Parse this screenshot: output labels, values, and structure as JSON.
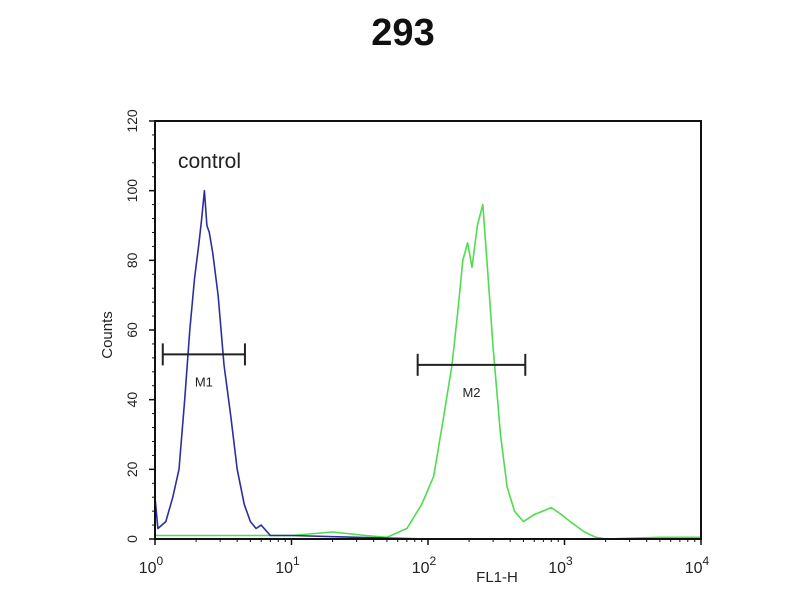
{
  "chart_data": {
    "type": "line",
    "title": "293",
    "xlabel": "FL1-H",
    "ylabel": "Counts",
    "xscale": "log",
    "xlim": [
      1,
      10000
    ],
    "ylim": [
      0,
      120
    ],
    "xticks": [
      {
        "base": "10",
        "exp": "0"
      },
      {
        "base": "10",
        "exp": "1"
      },
      {
        "base": "10",
        "exp": "2"
      },
      {
        "base": "10",
        "exp": "3"
      },
      {
        "base": "10",
        "exp": "4"
      }
    ],
    "yticks": [
      "0",
      "20",
      "40",
      "60",
      "80",
      "100",
      "120"
    ],
    "grid": false,
    "annotations": [
      {
        "text": "control",
        "x": 1.6,
        "y": 108
      }
    ],
    "markers": [
      {
        "label": "M1",
        "x_start": 1.14,
        "x_end": 4.56,
        "y": 53
      },
      {
        "label": "M2",
        "x_start": 84,
        "x_end": 516,
        "y": 50
      }
    ],
    "series": [
      {
        "color": "#2b2f9e",
        "x": [
          1.0,
          1.05,
          1.2,
          1.35,
          1.5,
          1.65,
          1.8,
          1.95,
          2.1,
          2.2,
          2.3,
          2.4,
          2.5,
          2.65,
          2.9,
          3.2,
          3.6,
          4.0,
          4.5,
          5.0,
          5.5,
          6.0,
          7.0,
          10,
          30,
          100,
          1000,
          10000
        ],
        "y": [
          12,
          3,
          5,
          12,
          20,
          40,
          60,
          75,
          85,
          92,
          100,
          90,
          88,
          82,
          70,
          50,
          35,
          20,
          10,
          5,
          3,
          4,
          1,
          1,
          0.5,
          0,
          0,
          0
        ]
      },
      {
        "color": "#4fdc4f",
        "x": [
          1,
          5,
          10,
          20,
          35,
          50,
          70,
          90,
          110,
          130,
          150,
          165,
          180,
          195,
          210,
          230,
          252,
          270,
          300,
          340,
          380,
          430,
          500,
          600,
          800,
          950,
          1100,
          1400,
          1700,
          2000,
          5000,
          10000
        ],
        "y": [
          1,
          1,
          1,
          2,
          1,
          0.5,
          3,
          10,
          18,
          35,
          50,
          65,
          80,
          85,
          78,
          90,
          96,
          80,
          55,
          30,
          15,
          8,
          5,
          7,
          9,
          7,
          5,
          2,
          0.5,
          0,
          0.5,
          0.5
        ]
      }
    ]
  }
}
